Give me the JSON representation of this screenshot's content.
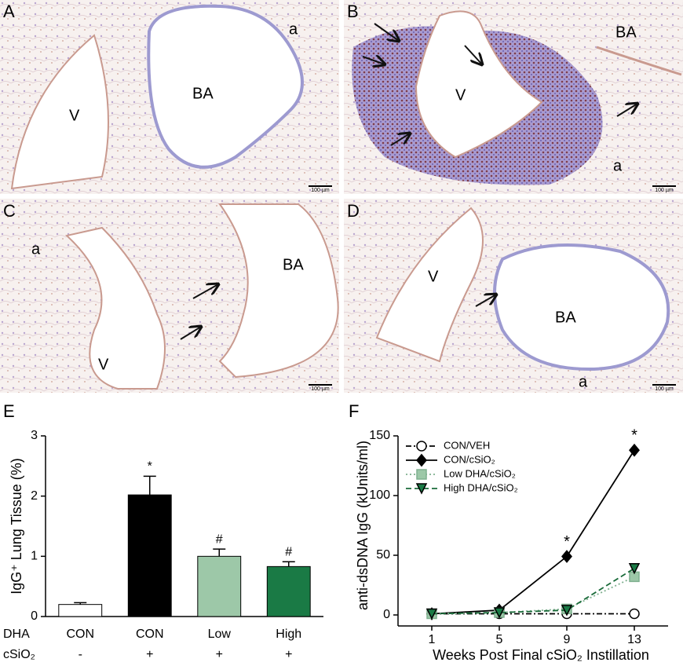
{
  "panels": [
    {
      "letter": "A",
      "labels": [
        "V",
        "BA",
        "a"
      ],
      "scale": "100 µm"
    },
    {
      "letter": "B",
      "labels": [
        "BA",
        "V",
        "a"
      ],
      "scale": "100 µm"
    },
    {
      "letter": "C",
      "labels": [
        "a",
        "V",
        "BA"
      ],
      "scale": "100 µm"
    },
    {
      "letter": "D",
      "labels": [
        "V",
        "BA",
        "a"
      ],
      "scale": "100 µm"
    }
  ],
  "chart_data": [
    {
      "type": "bar",
      "letter": "E",
      "ylabel": "IgG⁺ Lung Tissue (%)",
      "categories": [
        "CON",
        "CON",
        "Low",
        "High"
      ],
      "row_labels": [
        "DHA",
        "cSiO₂"
      ],
      "second_row": [
        "-",
        "+",
        "+",
        "+"
      ],
      "values": [
        0.2,
        2.02,
        1.0,
        0.83
      ],
      "errors": [
        0.03,
        0.31,
        0.12,
        0.08
      ],
      "colors": [
        "#ffffff",
        "#000000",
        "#9dc8a8",
        "#1a7a45"
      ],
      "annotations": [
        null,
        "*",
        "#",
        "#"
      ],
      "ylim": [
        0,
        3
      ],
      "yticks": [
        0,
        1,
        2,
        3
      ]
    },
    {
      "type": "line",
      "letter": "F",
      "xlabel": "Weeks Post Final cSiO₂ Instillation",
      "ylabel": "anti-dsDNA IgG (kUnits/ml)",
      "x": [
        1,
        5,
        9,
        13
      ],
      "series": [
        {
          "name": "CON/VEH",
          "color": "#000000",
          "fill": "#ffffff",
          "marker": "circle",
          "dash": "dashdot",
          "values": [
            1,
            1,
            1,
            1
          ]
        },
        {
          "name": "CON/cSiO₂",
          "color": "#000000",
          "fill": "#000000",
          "marker": "diamond",
          "dash": "solid",
          "values": [
            1,
            4,
            49,
            138
          ],
          "annotations": [
            null,
            null,
            "*",
            "*"
          ]
        },
        {
          "name": "Low DHA/cSiO₂",
          "color": "#7fb08f",
          "fill": "#9dc8a8",
          "marker": "square",
          "dash": "dotted",
          "values": [
            1,
            2,
            5,
            32
          ]
        },
        {
          "name": "High DHA/cSiO₂",
          "color": "#1a6b3a",
          "fill": "#1a7a45",
          "marker": "triangle-down",
          "dash": "dashed",
          "values": [
            1,
            2,
            4,
            39
          ]
        }
      ],
      "xlim": [
        -1,
        15
      ],
      "xticks": [
        1,
        5,
        9,
        13
      ],
      "ylim": [
        0,
        150
      ],
      "yticks": [
        0,
        50,
        100,
        150
      ],
      "legend": "upper left"
    }
  ]
}
